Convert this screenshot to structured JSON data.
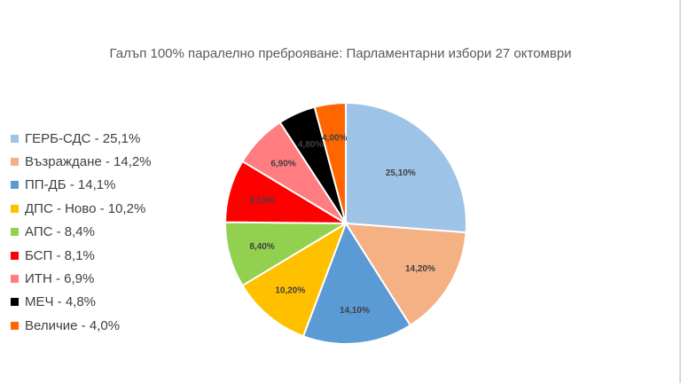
{
  "chart_data": {
    "type": "pie",
    "title": "Галъп 100% паралелно преброяване: Парламентарни избори 27 октомври",
    "legend_position": "left",
    "slices": [
      {
        "legend": "ГЕРБ-СДС - 25,1%",
        "label": "25,10%",
        "value": 25.1,
        "color": "#9dc3e6"
      },
      {
        "legend": "Възраждане - 14,2%",
        "label": "14,20%",
        "value": 14.2,
        "color": "#f4b183"
      },
      {
        "legend": "ПП-ДБ - 14,1%",
        "label": "14,10%",
        "value": 14.1,
        "color": "#5b9bd5"
      },
      {
        "legend": "ДПС - Ново - 10,2%",
        "label": "10,20%",
        "value": 10.2,
        "color": "#ffc000"
      },
      {
        "legend": "АПС - 8,4%",
        "label": "8,40%",
        "value": 8.4,
        "color": "#92d050"
      },
      {
        "legend": "БСП - 8,1%",
        "label": "8,10%",
        "value": 8.1,
        "color": "#ff0000"
      },
      {
        "legend": "ИТН - 6,9%",
        "label": "6,90%",
        "value": 6.9,
        "color": "#ff7c80"
      },
      {
        "legend": "МЕЧ - 4,8%",
        "label": "4,80%",
        "value": 4.8,
        "color": "#000000"
      },
      {
        "legend": "Величие - 4,0%",
        "label": "4,00%",
        "value": 4.0,
        "color": "#ff6600"
      }
    ]
  }
}
